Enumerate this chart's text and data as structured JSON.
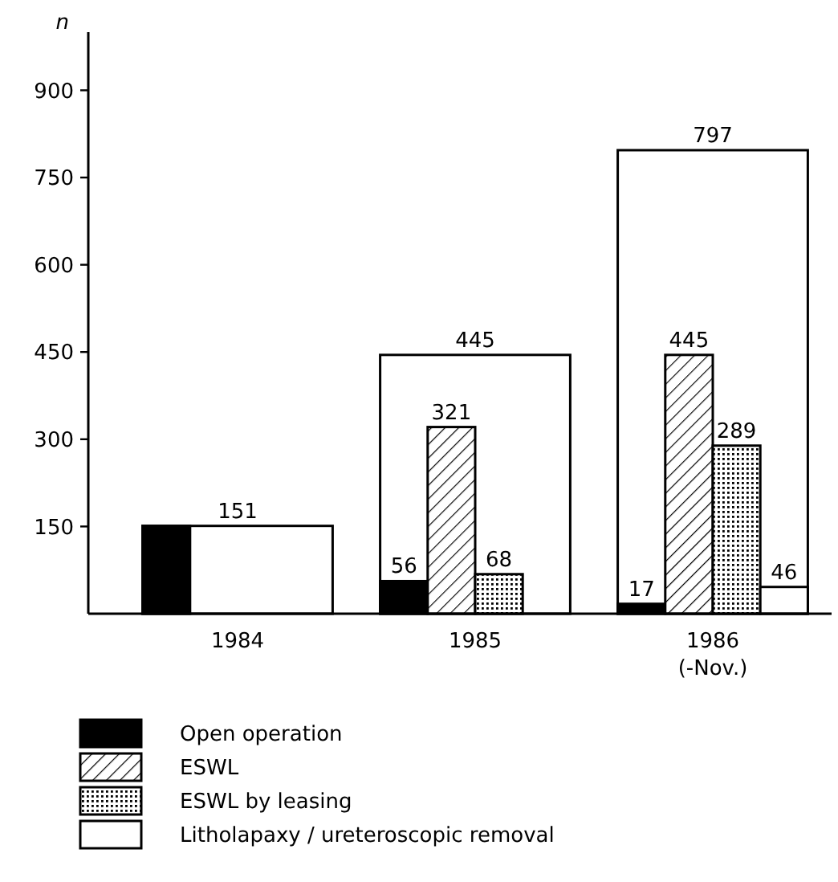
{
  "chart_data": {
    "type": "bar",
    "ylabel": "n",
    "categories": [
      "1984",
      "1985",
      "1986\n(-Nov.)"
    ],
    "series": [
      {
        "color": "#ffffff",
        "values": [
          151,
          445,
          797
        ],
        "value_labels": [
          "151",
          "445",
          "797"
        ]
      },
      {
        "name": "Open operation",
        "color": "#000000",
        "values": [
          151,
          56,
          17
        ],
        "value_labels": [
          null,
          "56",
          "17"
        ]
      },
      {
        "name": "ESWL",
        "color": "#000000",
        "values": [
          null,
          321,
          445
        ],
        "value_labels": [
          null,
          "321",
          "445"
        ]
      },
      {
        "name": "ESWL by leasing",
        "color": "#000000",
        "values": [
          null,
          68,
          289
        ],
        "value_labels": [
          null,
          "68",
          "289"
        ]
      },
      {
        "name": "Litholapaxy / ureteroscopic removal",
        "color": "#ffffff",
        "values": [
          null,
          null,
          46
        ],
        "value_labels": [
          null,
          null,
          "46"
        ]
      }
    ],
    "ylim": [
      0,
      1000
    ],
    "yticks": [
      150,
      300,
      450,
      600,
      750,
      900
    ],
    "grid": false,
    "legend": "bottom"
  }
}
